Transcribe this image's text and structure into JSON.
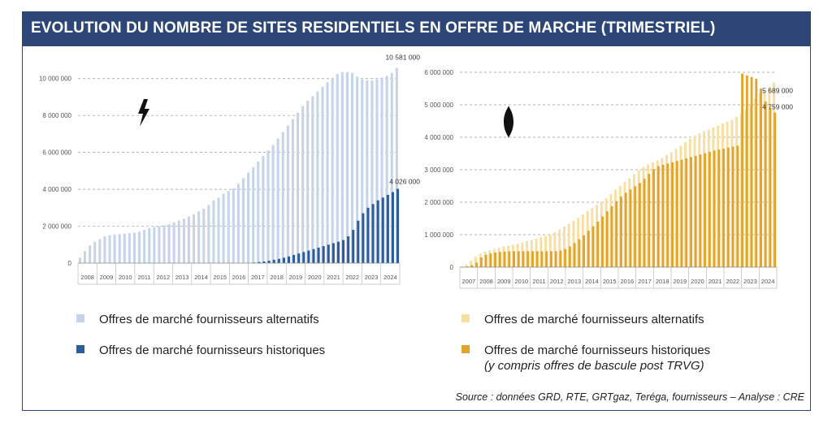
{
  "title": "EVOLUTION DU NOMBRE DE SITES RESIDENTIELS EN OFFRE DE MARCHE (TRIMESTRIEL)",
  "source": "Source : données GRD, RTE, GRTgaz, Teréga, fournisseurs – Analyse : CRE",
  "colors": {
    "banner": "#2b4677",
    "elec_alt": "#c6d4ea",
    "elec_hist": "#2e5b9a",
    "gas_alt": "#f6dfa0",
    "gas_hist": "#e2a42a"
  },
  "icons": {
    "electricity": "lightning-bolt-icon",
    "gas": "flame-icon"
  },
  "legend_elec": {
    "alt": "Offres de marché fournisseurs alternatifs",
    "hist": "Offres de marché fournisseurs historiques"
  },
  "legend_gas": {
    "alt": "Offres de marché fournisseurs alternatifs",
    "hist": "Offres de marché fournisseurs historiques",
    "hist_note": "(y compris offres de bascule post TRVG)"
  },
  "chart_data": [
    {
      "type": "bar",
      "title": "Électricité",
      "ylim": [
        0,
        11000000
      ],
      "yticks": [
        0,
        2000000,
        4000000,
        6000000,
        8000000,
        10000000
      ],
      "ytick_labels": [
        "0",
        "2 000 000",
        "4 000 000",
        "6 000 000",
        "8 000 000",
        "10 000 000"
      ],
      "year_labels": [
        "2008",
        "2009",
        "2010",
        "2011",
        "2012",
        "2013",
        "2014",
        "2015",
        "2016",
        "2017",
        "2018",
        "2019",
        "2020",
        "2021",
        "2022",
        "2023",
        "2024"
      ],
      "annotations": [
        {
          "series": "alt",
          "label": "10 581 000",
          "value": 10581000
        },
        {
          "series": "hist",
          "label": "4 026 000",
          "value": 4026000
        }
      ],
      "series": [
        {
          "name": "Offres de marché fournisseurs alternatifs",
          "values": [
            300000,
            650000,
            950000,
            1150000,
            1300000,
            1450000,
            1500000,
            1550000,
            1570000,
            1600000,
            1620000,
            1650000,
            1700000,
            1800000,
            1900000,
            1960000,
            2000000,
            2050000,
            2100000,
            2200000,
            2300000,
            2400000,
            2520000,
            2650000,
            2800000,
            2950000,
            3150000,
            3400000,
            3550000,
            3750000,
            3900000,
            4050000,
            4300000,
            4600000,
            4900000,
            5200000,
            5500000,
            5800000,
            6100000,
            6400000,
            6750000,
            7100000,
            7450000,
            7800000,
            8150000,
            8500000,
            8800000,
            9050000,
            9300000,
            9550000,
            9800000,
            10050000,
            10250000,
            10350000,
            10350000,
            10300000,
            10100000,
            9950000,
            9900000,
            9900000,
            9950000,
            10050000,
            10150000,
            10300000,
            10581000
          ]
        },
        {
          "name": "Offres de marché fournisseurs historiques",
          "values": [
            0,
            0,
            0,
            0,
            0,
            0,
            0,
            0,
            0,
            0,
            0,
            0,
            0,
            0,
            0,
            0,
            0,
            0,
            0,
            0,
            0,
            0,
            0,
            0,
            0,
            0,
            0,
            0,
            0,
            0,
            0,
            0,
            0,
            0,
            0,
            30000,
            60000,
            90000,
            130000,
            180000,
            230000,
            290000,
            360000,
            440000,
            520000,
            600000,
            680000,
            760000,
            840000,
            920000,
            1000000,
            1080000,
            1160000,
            1250000,
            1450000,
            1800000,
            2300000,
            2700000,
            3000000,
            3200000,
            3400000,
            3550000,
            3700000,
            3850000,
            4026000
          ]
        }
      ]
    },
    {
      "type": "bar",
      "title": "Gaz",
      "ylim": [
        0,
        6000000
      ],
      "yticks": [
        0,
        1000000,
        2000000,
        3000000,
        4000000,
        5000000,
        6000000
      ],
      "ytick_labels": [
        "0",
        "1 000 000",
        "2 000 000",
        "3 000 000",
        "4 000 000",
        "5 000 000",
        "6 000 000"
      ],
      "year_labels": [
        "2007",
        "2008",
        "2009",
        "2010",
        "2011",
        "2012",
        "2013",
        "2014",
        "2015",
        "2016",
        "2017",
        "2018",
        "2019",
        "2020",
        "2021",
        "2022",
        "2023",
        "2024"
      ],
      "annotations": [
        {
          "series": "alt",
          "label": "5 689 000",
          "value": 5689000
        },
        {
          "series": "hist",
          "label": "4 759 000",
          "value": 4759000
        }
      ],
      "series": [
        {
          "name": "Offres de marché fournisseurs alternatifs",
          "values": [
            30000,
            80000,
            200000,
            320000,
            420000,
            480000,
            520000,
            560000,
            600000,
            640000,
            660000,
            690000,
            720000,
            760000,
            800000,
            840000,
            880000,
            920000,
            960000,
            1000000,
            1080000,
            1160000,
            1250000,
            1340000,
            1430000,
            1520000,
            1620000,
            1720000,
            1820000,
            1920000,
            2020000,
            2120000,
            2250000,
            2380000,
            2500000,
            2620000,
            2740000,
            2860000,
            2980000,
            3080000,
            3160000,
            3220000,
            3280000,
            3360000,
            3450000,
            3540000,
            3640000,
            3740000,
            3850000,
            3950000,
            4050000,
            4120000,
            4180000,
            4240000,
            4300000,
            4360000,
            4420000,
            4480000,
            4540000,
            4620000,
            4720000,
            4850000,
            5000000,
            5200000,
            5350000,
            5450000,
            5550000,
            5689000
          ]
        },
        {
          "name": "Offres de marché fournisseurs historiques",
          "values": [
            0,
            20000,
            60000,
            140000,
            300000,
            380000,
            420000,
            450000,
            470000,
            480000,
            490000,
            490000,
            490000,
            490000,
            490000,
            490000,
            490000,
            490000,
            490000,
            490000,
            490000,
            510000,
            560000,
            640000,
            740000,
            860000,
            980000,
            1120000,
            1260000,
            1400000,
            1560000,
            1720000,
            1880000,
            2030000,
            2170000,
            2290000,
            2390000,
            2490000,
            2590000,
            2720000,
            2870000,
            3020000,
            3110000,
            3150000,
            3190000,
            3230000,
            3270000,
            3310000,
            3350000,
            3390000,
            3430000,
            3470000,
            3510000,
            3550000,
            3590000,
            3620000,
            3650000,
            3680000,
            3710000,
            3740000,
            5960000,
            5900000,
            5850000,
            5800000,
            5500000,
            5100000,
            4900000,
            4759000
          ]
        }
      ]
    }
  ]
}
